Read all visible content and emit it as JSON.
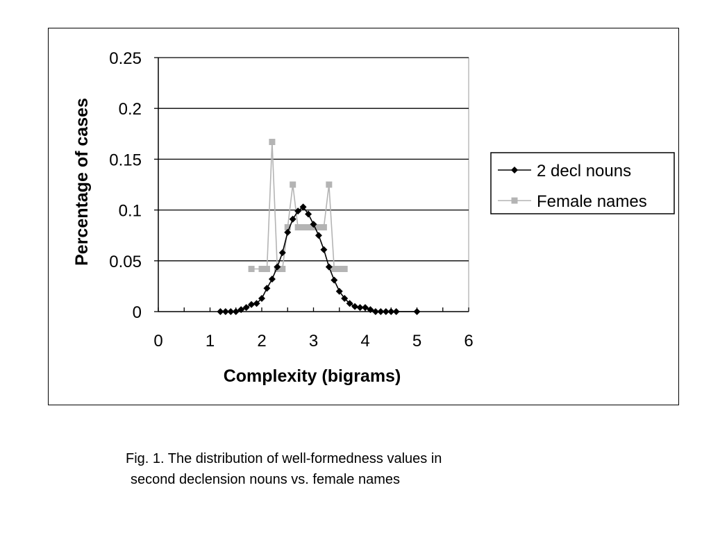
{
  "chart_data": {
    "type": "line",
    "xlabel": "Complexity (bigrams)",
    "ylabel": "Percentage of cases",
    "xlim": [
      0,
      6
    ],
    "ylim": [
      0,
      0.25
    ],
    "x_ticks": [
      "0",
      "1",
      "2",
      "3",
      "4",
      "5",
      "6"
    ],
    "y_ticks": [
      "0",
      "0.05",
      "0.1",
      "0.15",
      "0.2",
      "0.25"
    ],
    "grid": "horizontal",
    "legend_position": "right",
    "series": [
      {
        "name": "2 decl nouns",
        "color": "#000000",
        "marker": "diamond",
        "x": [
          1.2,
          1.3,
          1.4,
          1.5,
          1.6,
          1.7,
          1.8,
          1.9,
          2.0,
          2.1,
          2.2,
          2.3,
          2.4,
          2.5,
          2.6,
          2.7,
          2.8,
          2.9,
          3.0,
          3.1,
          3.2,
          3.3,
          3.4,
          3.5,
          3.6,
          3.7,
          3.8,
          3.9,
          4.0,
          4.1,
          4.2,
          4.3,
          4.4,
          4.5,
          4.6,
          5.0
        ],
        "y": [
          0.0,
          0.0,
          0.0,
          0.0,
          0.002,
          0.004,
          0.007,
          0.008,
          0.013,
          0.023,
          0.032,
          0.044,
          0.058,
          0.078,
          0.091,
          0.099,
          0.103,
          0.096,
          0.086,
          0.075,
          0.061,
          0.044,
          0.031,
          0.02,
          0.013,
          0.008,
          0.005,
          0.004,
          0.004,
          0.002,
          0.0,
          0.0,
          0.0,
          0.0,
          0.0,
          0.0
        ]
      },
      {
        "name": "Female names",
        "color": "#b4b4b4",
        "marker": "square",
        "x": [
          1.8,
          2.0,
          2.1,
          2.2,
          2.3,
          2.4,
          2.5,
          2.6,
          2.7,
          2.8,
          2.9,
          3.0,
          3.1,
          3.2,
          3.3,
          3.4,
          3.5,
          3.6
        ],
        "y": [
          0.042,
          0.042,
          0.042,
          0.167,
          0.042,
          0.042,
          0.083,
          0.125,
          0.083,
          0.083,
          0.083,
          0.083,
          0.083,
          0.083,
          0.125,
          0.042,
          0.042,
          0.042
        ]
      }
    ]
  },
  "caption": {
    "line1": "Fig. 1. The distribution of well-formedness values in",
    "line2": "second declension nouns vs. female names"
  }
}
